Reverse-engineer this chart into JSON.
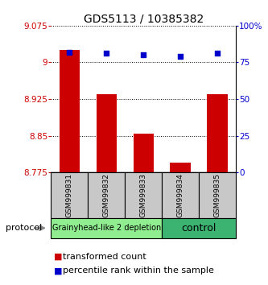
{
  "title": "GDS5113 / 10385382",
  "samples": [
    "GSM999831",
    "GSM999832",
    "GSM999833",
    "GSM999834",
    "GSM999835"
  ],
  "bar_values": [
    9.025,
    8.935,
    8.855,
    8.795,
    8.935
  ],
  "percentile_values": [
    82,
    81,
    80,
    79,
    81
  ],
  "ylim_left": [
    8.775,
    9.075
  ],
  "ylim_right": [
    0,
    100
  ],
  "yticks_left": [
    8.775,
    8.85,
    8.925,
    9.0,
    9.075
  ],
  "yticks_right": [
    0,
    25,
    50,
    75,
    100
  ],
  "ytick_labels_left": [
    "8.775",
    "8.85",
    "8.925",
    "9",
    "9.075"
  ],
  "ytick_labels_right": [
    "0",
    "25",
    "50",
    "75",
    "100%"
  ],
  "bar_color": "#cc0000",
  "dot_color": "#0000cc",
  "bar_bottom": 8.775,
  "group1_label": "Grainyhead-like 2 depletion",
  "group2_label": "control",
  "group1_color": "#90ee90",
  "group2_color": "#3cb371",
  "protocol_label": "protocol",
  "legend_bar_label": "transformed count",
  "legend_dot_label": "percentile rank within the sample",
  "xlabel_color": "#cc0000",
  "ylabel_right_color": "#0000cc",
  "title_fontsize": 10,
  "tick_fontsize": 7.5,
  "legend_fontsize": 8,
  "sample_fontsize": 6.5,
  "group_label_fontsize": 7,
  "sample_bg": "#c8c8c8"
}
